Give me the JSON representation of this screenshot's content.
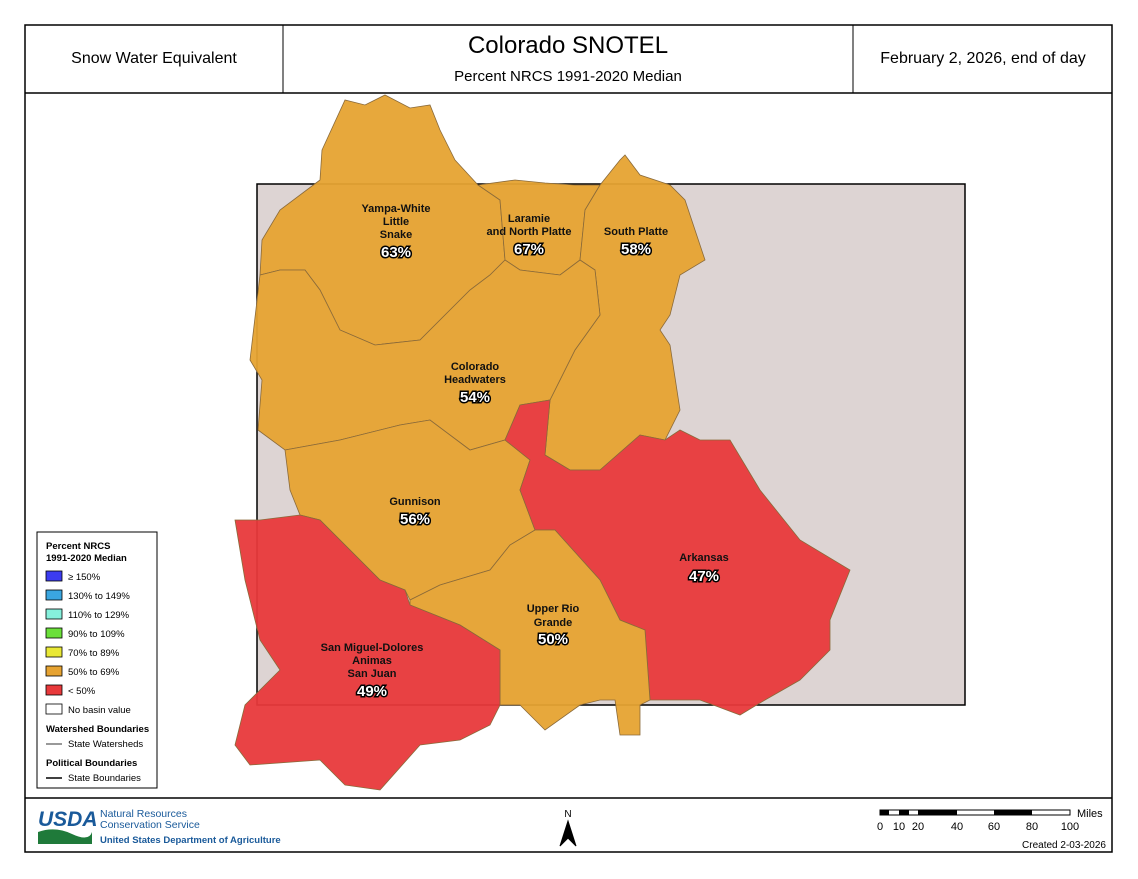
{
  "header": {
    "left": "Snow Water Equivalent",
    "title": "Colorado SNOTEL",
    "subtitle": "Percent NRCS 1991-2020 Median",
    "date": "February 2, 2026, end of day"
  },
  "basins": [
    {
      "name_lines": [
        "Yampa-White",
        "Little",
        "Snake"
      ],
      "percent": "63%",
      "color": "#e6a332"
    },
    {
      "name_lines": [
        "Laramie",
        "and North Platte"
      ],
      "percent": "67%",
      "color": "#e6a332"
    },
    {
      "name_lines": [
        "South Platte"
      ],
      "percent": "58%",
      "color": "#e6a332"
    },
    {
      "name_lines": [
        "Colorado",
        "Headwaters"
      ],
      "percent": "54%",
      "color": "#e6a332"
    },
    {
      "name_lines": [
        "Gunnison"
      ],
      "percent": "56%",
      "color": "#e6a332"
    },
    {
      "name_lines": [
        "Arkansas"
      ],
      "percent": "47%",
      "color": "#e8393b"
    },
    {
      "name_lines": [
        "Upper Rio",
        "Grande"
      ],
      "percent": "50%",
      "color": "#e6a332"
    },
    {
      "name_lines": [
        "San Miguel-Dolores",
        "Animas",
        "San Juan"
      ],
      "percent": "49%",
      "color": "#e8393b"
    }
  ],
  "legend": {
    "title_lines": [
      "Percent NRCS",
      "1991-2020 Median"
    ],
    "items": [
      {
        "label": "≥ 150%",
        "color": "#3c3cf0"
      },
      {
        "label": "130% to 149%",
        "color": "#3aa6e0"
      },
      {
        "label": "110% to 129%",
        "color": "#86f0dc"
      },
      {
        "label": "90% to 109%",
        "color": "#6be03a"
      },
      {
        "label": "70% to 89%",
        "color": "#e9e836"
      },
      {
        "label": "50% to 69%",
        "color": "#e6a332"
      },
      {
        "label": "< 50%",
        "color": "#e8393b"
      },
      {
        "label": "No basin value",
        "color": "#ffffff"
      }
    ],
    "watershed_title": "Watershed Boundaries",
    "watershed_item": "State Watersheds",
    "political_title": "Political Boundaries",
    "political_item": "State Boundaries"
  },
  "footer": {
    "usda": "USDA",
    "agency_lines": [
      "Natural Resources",
      "Conservation Service"
    ],
    "department": "United States Department of Agriculture",
    "north": "N",
    "scale_labels": [
      "0",
      "10",
      "20",
      "40",
      "60",
      "80",
      "100"
    ],
    "scale_unit": "Miles",
    "created": "Created 2-03-2026"
  }
}
